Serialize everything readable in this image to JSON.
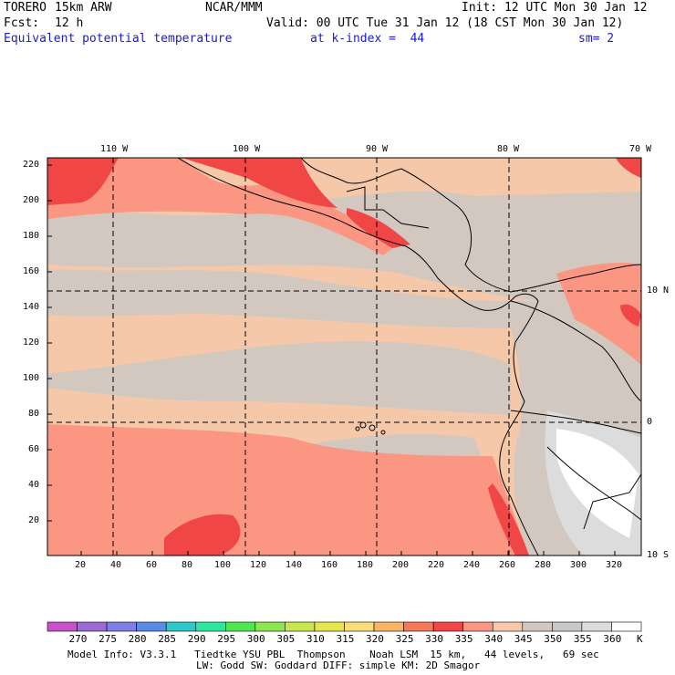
{
  "header": {
    "model": "TORERO",
    "resolution": "15km ARW",
    "source": "NCAR/MMM",
    "init": "Init: 12 UTC Mon 30 Jan 12",
    "fcst_label": "Fcst:",
    "fcst_value": "12 h",
    "valid": "Valid: 00 UTC Tue 31 Jan 12 (18 CST Mon 30 Jan 12)",
    "field": "Equivalent potential temperature",
    "level": "at k-index =  44",
    "smoothing": "sm= 2"
  },
  "map": {
    "lon_labels": [
      "110 W",
      "100 W",
      "90 W",
      "80 W",
      "70 W"
    ],
    "lat_labels": [
      "10 N",
      "0",
      "10 S"
    ],
    "y_ticks": [
      "220",
      "200",
      "180",
      "160",
      "140",
      "120",
      "100",
      "80",
      "60",
      "40",
      "20"
    ],
    "x_ticks": [
      "20",
      "40",
      "60",
      "80",
      "100",
      "120",
      "140",
      "160",
      "180",
      "200",
      "220",
      "240",
      "260",
      "280",
      "300",
      "320"
    ]
  },
  "colorbar": {
    "unit": "K",
    "labels": [
      "270",
      "275",
      "280",
      "285",
      "290",
      "295",
      "300",
      "305",
      "310",
      "315",
      "320",
      "325",
      "330",
      "335",
      "340",
      "345",
      "350",
      "355",
      "360"
    ],
    "colors": [
      "#c850c8",
      "#9b6ad2",
      "#7f7fe6",
      "#5a8ce6",
      "#2ec8c8",
      "#2ee6a0",
      "#50e650",
      "#8ce650",
      "#c8e650",
      "#e6e650",
      "#fadc78",
      "#fab464",
      "#f5785a",
      "#f04646",
      "#fa9682",
      "#f5c8aa",
      "#d2c8c0",
      "#c8c8c8",
      "#dcdcdc",
      "#ffffff"
    ]
  },
  "footer": {
    "line1": "Model Info: V3.3.1   Tiedtke YSU PBL  Thompson    Noah LSM  15 km,   44 levels,   69 sec",
    "line2": "LW: Godd SW: Goddard DIFF: simple KM: 2D Smagor"
  }
}
